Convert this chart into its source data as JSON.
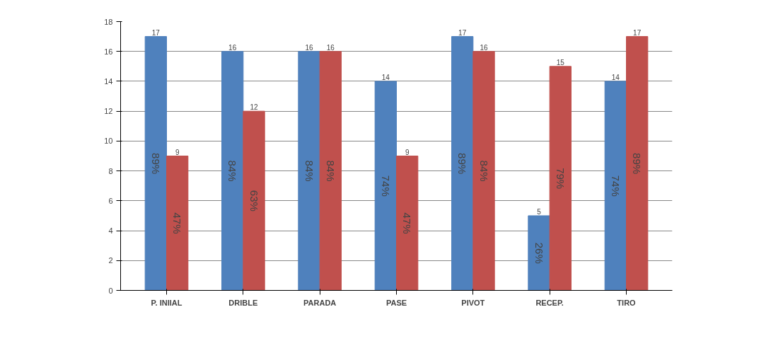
{
  "chart_data": {
    "type": "bar",
    "categories": [
      "P. INIIAL",
      "DRIBLE",
      "PARADA",
      "PASE",
      "PIVOT",
      "RECEP.",
      "TIRO"
    ],
    "series": [
      {
        "color": "#4f81bd",
        "values": [
          17,
          16,
          16,
          14,
          17,
          5,
          14
        ]
      },
      {
        "color": "#c0504d",
        "values": [
          9,
          12,
          16,
          9,
          16,
          15,
          17
        ]
      }
    ],
    "annotations": [
      {
        "text": "89%",
        "x": "P. INIIAL",
        "y": 8.5
      },
      {
        "text": "84%",
        "x": "DRIBLE",
        "y": 8
      },
      {
        "text": "84%",
        "x": "PARADA",
        "y": 8
      },
      {
        "text": "74%",
        "x": "PASE",
        "y": 7
      },
      {
        "text": "89%",
        "x": "PIVOT",
        "y": 8.5
      },
      {
        "text": "26%",
        "x": "RECEP.",
        "y": 2.5
      },
      {
        "text": "74%",
        "x": "TIRO",
        "y": 7
      },
      {
        "text": "47%",
        "x": "P. INIIAL",
        "y": 4.5
      },
      {
        "text": "63%",
        "x": "DRIBLE",
        "y": 6
      },
      {
        "text": "84%",
        "x": "PARADA",
        "y": 8
      },
      {
        "text": "47%",
        "x": "PASE",
        "y": 4.5
      },
      {
        "text": "84%",
        "x": "PIVOT",
        "y": 8
      },
      {
        "text": "79%",
        "x": "RECEP.",
        "y": 7.5
      },
      {
        "text": "89%",
        "x": "TIRO",
        "y": 8.5
      }
    ],
    "ylim": [
      0,
      18
    ],
    "yticks": [
      0,
      2,
      4,
      6,
      8,
      10,
      12,
      14,
      16,
      18
    ],
    "grid": "y",
    "data_labels": true
  }
}
